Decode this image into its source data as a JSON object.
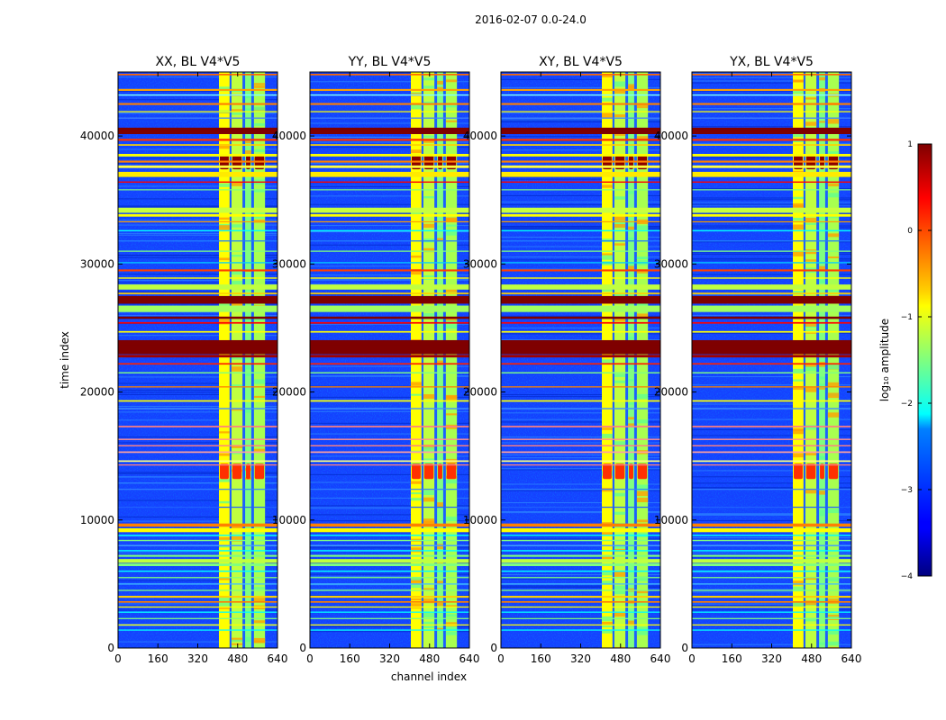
{
  "figure": {
    "suptitle": "2016-02-07 0.0-24.0"
  },
  "chart_data": {
    "type": "heatmap",
    "xlabel": "channel index",
    "ylabel": "time index",
    "xlim": [
      0,
      640
    ],
    "ylim": [
      0,
      45000
    ],
    "x_ticks": [
      0,
      160,
      320,
      480,
      640
    ],
    "x_tick_labels": [
      "0",
      "160",
      "320",
      "480",
      "640"
    ],
    "y_ticks": [
      0,
      10000,
      20000,
      30000,
      40000
    ],
    "y_tick_labels": [
      "0",
      "10000",
      "20000",
      "30000",
      "40000"
    ],
    "panels": [
      {
        "title": "XX, BL V4*V5",
        "pol": "XX"
      },
      {
        "title": "YY, BL V4*V5",
        "pol": "YY"
      },
      {
        "title": "XY, BL V4*V5",
        "pol": "XY"
      },
      {
        "title": "YX, BL V4*V5",
        "pol": "YX"
      }
    ],
    "bright_channel_bands": [
      [
        405,
        448
      ],
      [
        455,
        500
      ],
      [
        510,
        535
      ],
      [
        545,
        590
      ]
    ],
    "colorbar": {
      "label": "log₁₀ amplitude",
      "range": [
        -4,
        1
      ],
      "ticks": [
        1,
        0,
        -1,
        -2,
        -3,
        -4
      ],
      "tick_labels": [
        "1",
        "0",
        "−1",
        "−2",
        "−3",
        "−4"
      ],
      "colormap": "jet"
    }
  },
  "colors": {
    "background": "#ffffff",
    "axes": "#000000"
  }
}
